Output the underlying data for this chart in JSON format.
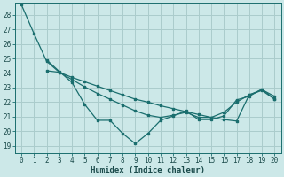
{
  "xlabel": "Humidex (Indice chaleur)",
  "background_color": "#cce8e8",
  "grid_color": "#aacccc",
  "line_color": "#1a6e6e",
  "xlim": [
    -0.5,
    20.5
  ],
  "ylim": [
    18.5,
    28.8
  ],
  "yticks": [
    19,
    20,
    21,
    22,
    23,
    24,
    25,
    26,
    27,
    28
  ],
  "xticks": [
    0,
    1,
    2,
    3,
    4,
    5,
    6,
    7,
    8,
    9,
    10,
    11,
    12,
    13,
    14,
    15,
    16,
    17,
    18,
    19,
    20
  ],
  "line1_x": [
    0,
    1,
    2,
    3,
    4,
    5,
    6,
    7,
    8,
    9,
    10,
    11,
    12,
    13,
    14,
    15,
    16,
    17,
    18,
    19,
    20
  ],
  "line1_y": [
    28.7,
    26.7,
    24.8,
    24.05,
    23.7,
    23.4,
    23.1,
    22.8,
    22.5,
    22.2,
    22.0,
    21.75,
    21.55,
    21.35,
    21.15,
    20.95,
    20.8,
    20.7,
    22.5,
    22.8,
    22.2
  ],
  "line2_x": [
    2,
    3,
    4,
    5,
    6,
    7,
    8,
    9,
    10,
    11,
    12,
    13,
    14,
    15,
    16,
    17,
    18,
    19,
    20
  ],
  "line2_y": [
    24.15,
    24.05,
    23.55,
    23.05,
    22.6,
    22.2,
    21.8,
    21.4,
    21.1,
    20.95,
    21.1,
    21.3,
    20.95,
    20.95,
    21.3,
    22.0,
    22.5,
    22.85,
    22.4
  ],
  "line3_x": [
    2,
    3,
    4,
    5,
    6,
    7,
    8,
    9,
    10,
    11,
    12,
    13,
    14,
    15,
    16,
    17,
    18,
    19,
    20
  ],
  "line3_y": [
    24.9,
    24.1,
    23.35,
    21.85,
    20.75,
    20.75,
    19.85,
    19.15,
    19.85,
    20.75,
    21.05,
    21.4,
    20.8,
    20.8,
    21.05,
    22.15,
    22.4,
    22.9,
    22.2
  ]
}
